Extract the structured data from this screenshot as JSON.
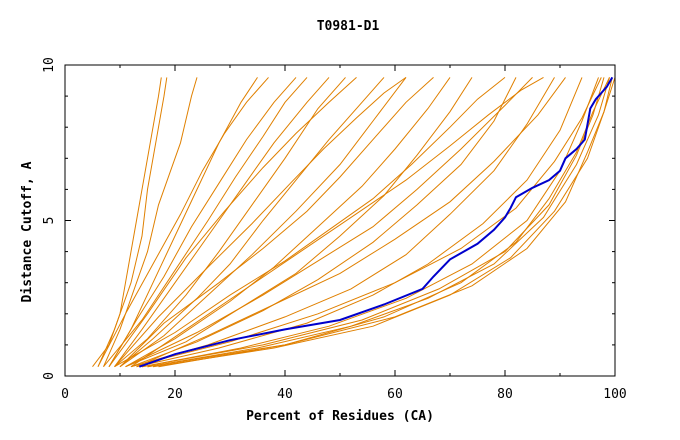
{
  "chart_data": {
    "type": "line",
    "title": "T0981-D1",
    "xlabel": "Percent of Residues (CA)",
    "ylabel": "Distance Cutoff, A",
    "xlim": [
      0,
      100
    ],
    "ylim": [
      0,
      10
    ],
    "x_ticks": [
      0,
      20,
      40,
      60,
      80,
      100
    ],
    "x_tick_labels": [
      "0",
      "20",
      "40",
      "60",
      "80",
      "100"
    ],
    "y_ticks": [
      0,
      5,
      10
    ],
    "y_tick_labels": [
      "0",
      "5",
      "10"
    ],
    "grid": false,
    "legend": "none",
    "colors": {
      "highlight": "#0000cc",
      "others": "#e08000",
      "axes": "#000000"
    },
    "highlight_series": {
      "x": [
        13.5,
        20,
        30,
        40,
        50,
        58,
        65,
        67,
        70,
        75,
        78,
        80,
        81,
        82,
        85,
        88,
        90,
        91,
        93,
        94.5,
        95.5,
        96.5,
        97.5,
        98.5,
        99.5
      ],
      "y": [
        0.3,
        0.7,
        1.15,
        1.5,
        1.8,
        2.3,
        2.8,
        3.2,
        3.75,
        4.25,
        4.7,
        5.1,
        5.4,
        5.75,
        6.05,
        6.3,
        6.6,
        7.0,
        7.3,
        7.6,
        8.6,
        8.9,
        9.1,
        9.3,
        9.6
      ]
    },
    "other_series": [
      {
        "x": [
          5,
          8,
          10,
          11,
          12,
          13,
          14,
          15,
          16,
          17,
          17.5
        ],
        "y": [
          0.3,
          1,
          2,
          3,
          4,
          5,
          6,
          7,
          8,
          9,
          9.6
        ]
      },
      {
        "x": [
          6,
          9,
          12,
          14,
          15,
          16,
          17,
          18,
          18.5
        ],
        "y": [
          0.3,
          1.5,
          3,
          4.5,
          6,
          7,
          8,
          9,
          9.6
        ]
      },
      {
        "x": [
          7,
          10,
          13,
          15,
          17,
          19,
          21,
          23,
          24
        ],
        "y": [
          0.3,
          1.5,
          3,
          4,
          5.5,
          6.5,
          7.5,
          9,
          9.6
        ]
      },
      {
        "x": [
          8,
          12,
          16,
          20,
          24,
          28,
          32,
          35
        ],
        "y": [
          0.3,
          1.5,
          3,
          4.5,
          6,
          7.5,
          8.8,
          9.6
        ]
      },
      {
        "x": [
          8,
          13,
          18,
          23,
          28,
          33,
          38,
          42
        ],
        "y": [
          0.3,
          1.8,
          3.2,
          4.8,
          6.2,
          7.6,
          8.8,
          9.6
        ]
      },
      {
        "x": [
          9,
          14,
          20,
          26,
          32,
          38,
          44,
          48
        ],
        "y": [
          0.3,
          1.5,
          3,
          4.5,
          6,
          7.5,
          8.8,
          9.6
        ]
      },
      {
        "x": [
          9,
          15,
          22,
          28,
          34,
          40,
          46,
          51
        ],
        "y": [
          0.3,
          1.2,
          2.6,
          4,
          5.5,
          7,
          8.6,
          9.6
        ]
      },
      {
        "x": [
          10,
          16,
          24,
          30,
          36,
          42,
          48,
          54,
          58
        ],
        "y": [
          0.3,
          1.2,
          2.5,
          3.6,
          5,
          6.3,
          7.6,
          8.8,
          9.6
        ]
      },
      {
        "x": [
          10,
          18,
          26,
          34,
          42,
          50,
          56,
          62
        ],
        "y": [
          0.3,
          1.3,
          2.6,
          3.9,
          5.3,
          6.8,
          8.2,
          9.6
        ]
      },
      {
        "x": [
          11,
          20,
          30,
          38,
          46,
          54,
          60,
          66,
          70
        ],
        "y": [
          0.3,
          1.2,
          2.4,
          3.5,
          4.8,
          6.1,
          7.3,
          8.6,
          9.6
        ]
      },
      {
        "x": [
          11,
          22,
          32,
          42,
          50,
          58,
          64,
          70,
          74
        ],
        "y": [
          0.3,
          1.1,
          2.2,
          3.3,
          4.5,
          5.8,
          7.1,
          8.5,
          9.6
        ]
      },
      {
        "x": [
          12,
          24,
          36,
          46,
          56,
          64,
          72,
          78,
          82
        ],
        "y": [
          0.3,
          1.1,
          2.1,
          3.1,
          4.3,
          5.5,
          6.8,
          8.2,
          9.6
        ]
      },
      {
        "x": [
          12,
          26,
          40,
          52,
          62,
          70,
          78,
          84,
          89
        ],
        "y": [
          0.3,
          1.0,
          1.9,
          2.8,
          3.9,
          5.2,
          6.6,
          8.1,
          9.6
        ]
      },
      {
        "x": [
          13,
          28,
          44,
          56,
          66,
          76,
          84,
          90,
          94
        ],
        "y": [
          0.3,
          0.9,
          1.7,
          2.6,
          3.6,
          4.9,
          6.3,
          7.9,
          9.6
        ]
      },
      {
        "x": [
          14,
          32,
          48,
          62,
          74,
          84,
          90,
          94,
          97
        ],
        "y": [
          0.3,
          0.9,
          1.6,
          2.5,
          3.6,
          5.0,
          6.6,
          8.2,
          9.6
        ]
      },
      {
        "x": [
          15,
          35,
          52,
          66,
          78,
          87,
          93,
          97,
          99
        ],
        "y": [
          0.3,
          0.9,
          1.6,
          2.5,
          3.6,
          5.1,
          6.8,
          8.4,
          9.6
        ]
      },
      {
        "x": [
          16,
          38,
          56,
          70,
          81,
          89,
          95,
          98,
          100
        ],
        "y": [
          0.3,
          0.9,
          1.6,
          2.6,
          3.8,
          5.3,
          7.0,
          8.5,
          9.6
        ]
      },
      {
        "x": [
          12,
          30,
          46,
          60,
          72,
          82,
          89,
          94,
          97.5
        ],
        "y": [
          0.3,
          1.1,
          2.0,
          3.0,
          4.1,
          5.4,
          6.9,
          8.3,
          9.6
        ]
      },
      {
        "x": [
          14,
          36,
          54,
          68,
          80,
          88,
          93,
          96,
          98
        ],
        "y": [
          0.3,
          1.0,
          1.8,
          2.8,
          4.0,
          5.5,
          7.1,
          8.4,
          9.6
        ]
      },
      {
        "x": [
          15,
          40,
          60,
          74,
          84,
          91,
          95,
          98,
          99.5
        ],
        "y": [
          0.3,
          1.0,
          1.9,
          2.9,
          4.1,
          5.6,
          7.2,
          8.5,
          9.6
        ]
      },
      {
        "x": [
          17,
          40,
          58,
          72,
          82,
          88,
          93,
          96,
          99
        ],
        "y": [
          0.3,
          1.0,
          1.9,
          3.0,
          4.3,
          5.7,
          7.2,
          8.5,
          9.6
        ]
      },
      {
        "x": [
          9,
          20,
          30,
          40,
          48,
          56,
          63,
          70,
          75,
          80
        ],
        "y": [
          0.3,
          1.4,
          2.6,
          3.7,
          4.7,
          5.7,
          6.8,
          8.0,
          8.9,
          9.6
        ]
      },
      {
        "x": [
          10,
          18,
          28,
          36,
          44,
          50,
          56,
          62,
          67
        ],
        "y": [
          0.3,
          1.7,
          3.0,
          4.1,
          5.3,
          6.4,
          7.6,
          8.8,
          9.6
        ]
      },
      {
        "x": [
          7,
          14,
          20,
          26,
          31,
          36,
          40,
          44
        ],
        "y": [
          0.3,
          1.8,
          3.4,
          5.0,
          6.4,
          7.7,
          8.8,
          9.6
        ]
      },
      {
        "x": [
          8,
          15,
          22,
          29,
          36,
          42,
          48,
          53
        ],
        "y": [
          0.3,
          2.0,
          3.8,
          5.3,
          6.7,
          7.8,
          8.8,
          9.6
        ]
      },
      {
        "x": [
          6,
          11,
          16,
          21,
          25,
          29,
          33,
          37
        ],
        "y": [
          0.3,
          2.0,
          3.6,
          5.2,
          6.6,
          7.8,
          8.8,
          9.6
        ]
      },
      {
        "x": [
          11,
          24,
          36,
          46,
          56,
          64,
          72,
          80,
          85
        ],
        "y": [
          0.3,
          1.4,
          2.6,
          3.7,
          4.8,
          6.0,
          7.3,
          8.7,
          9.6
        ]
      },
      {
        "x": [
          13,
          26,
          38,
          50,
          60,
          70,
          78,
          86,
          91
        ],
        "y": [
          0.3,
          1.3,
          2.3,
          3.3,
          4.4,
          5.6,
          6.9,
          8.4,
          9.6
        ]
      },
      {
        "x": [
          9,
          17,
          26,
          34,
          41,
          47,
          53,
          58,
          62
        ],
        "y": [
          0.3,
          1.9,
          3.5,
          4.9,
          6.2,
          7.3,
          8.3,
          9.1,
          9.6
        ]
      },
      {
        "x": [
          12,
          22,
          32,
          42,
          52,
          62,
          70,
          77,
          83,
          87
        ],
        "y": [
          0.3,
          1.5,
          2.7,
          3.9,
          5.1,
          6.3,
          7.4,
          8.4,
          9.2,
          9.6
        ]
      }
    ]
  }
}
